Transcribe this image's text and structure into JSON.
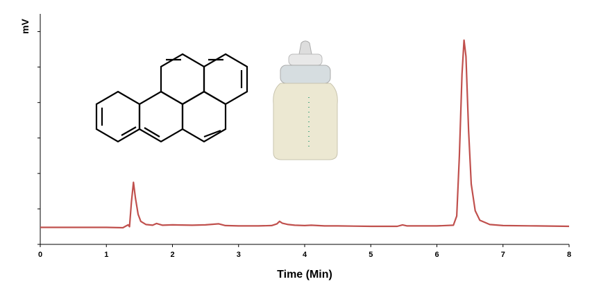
{
  "chart_data": {
    "type": "line",
    "xlabel": "Time (Min)",
    "ylabel": "mV",
    "xlim": [
      0,
      8
    ],
    "xticks": [
      0,
      1,
      2,
      3,
      4,
      5,
      6,
      7,
      8
    ],
    "ylim": [
      0,
      6.5
    ],
    "yticks": [
      {
        "value": 0,
        "label": null
      },
      {
        "value": 1,
        "label": null
      },
      {
        "value": 2,
        "label": null
      },
      {
        "value": 3,
        "label": null
      },
      {
        "value": 4,
        "label": null
      },
      {
        "value": 5,
        "label": null
      },
      {
        "value": 6,
        "label": null
      }
    ],
    "series": [
      {
        "color": "#c0504d",
        "x": [
          0,
          1.0,
          1.25,
          1.3,
          1.33,
          1.35,
          1.38,
          1.41,
          1.44,
          1.48,
          1.52,
          1.6,
          1.7,
          1.76,
          1.85,
          2.0,
          2.3,
          2.5,
          2.7,
          2.8,
          3.0,
          3.3,
          3.5,
          3.58,
          3.62,
          3.66,
          3.75,
          3.85,
          4.0,
          4.1,
          4.3,
          4.5,
          5.0,
          5.4,
          5.48,
          5.55,
          6.0,
          6.25,
          6.3,
          6.34,
          6.38,
          6.41,
          6.44,
          6.48,
          6.52,
          6.58,
          6.65,
          6.8,
          7.0,
          7.5,
          8.0
        ],
        "values": [
          0.48,
          0.48,
          0.47,
          0.52,
          0.55,
          0.5,
          1.2,
          1.75,
          1.3,
          0.85,
          0.65,
          0.56,
          0.54,
          0.59,
          0.54,
          0.55,
          0.54,
          0.55,
          0.58,
          0.53,
          0.52,
          0.52,
          0.53,
          0.58,
          0.65,
          0.6,
          0.56,
          0.54,
          0.53,
          0.54,
          0.52,
          0.52,
          0.51,
          0.51,
          0.55,
          0.52,
          0.52,
          0.54,
          0.8,
          2.5,
          4.8,
          5.76,
          5.3,
          3.2,
          1.7,
          0.95,
          0.68,
          0.56,
          0.53,
          0.52,
          0.51
        ]
      }
    ]
  }
}
